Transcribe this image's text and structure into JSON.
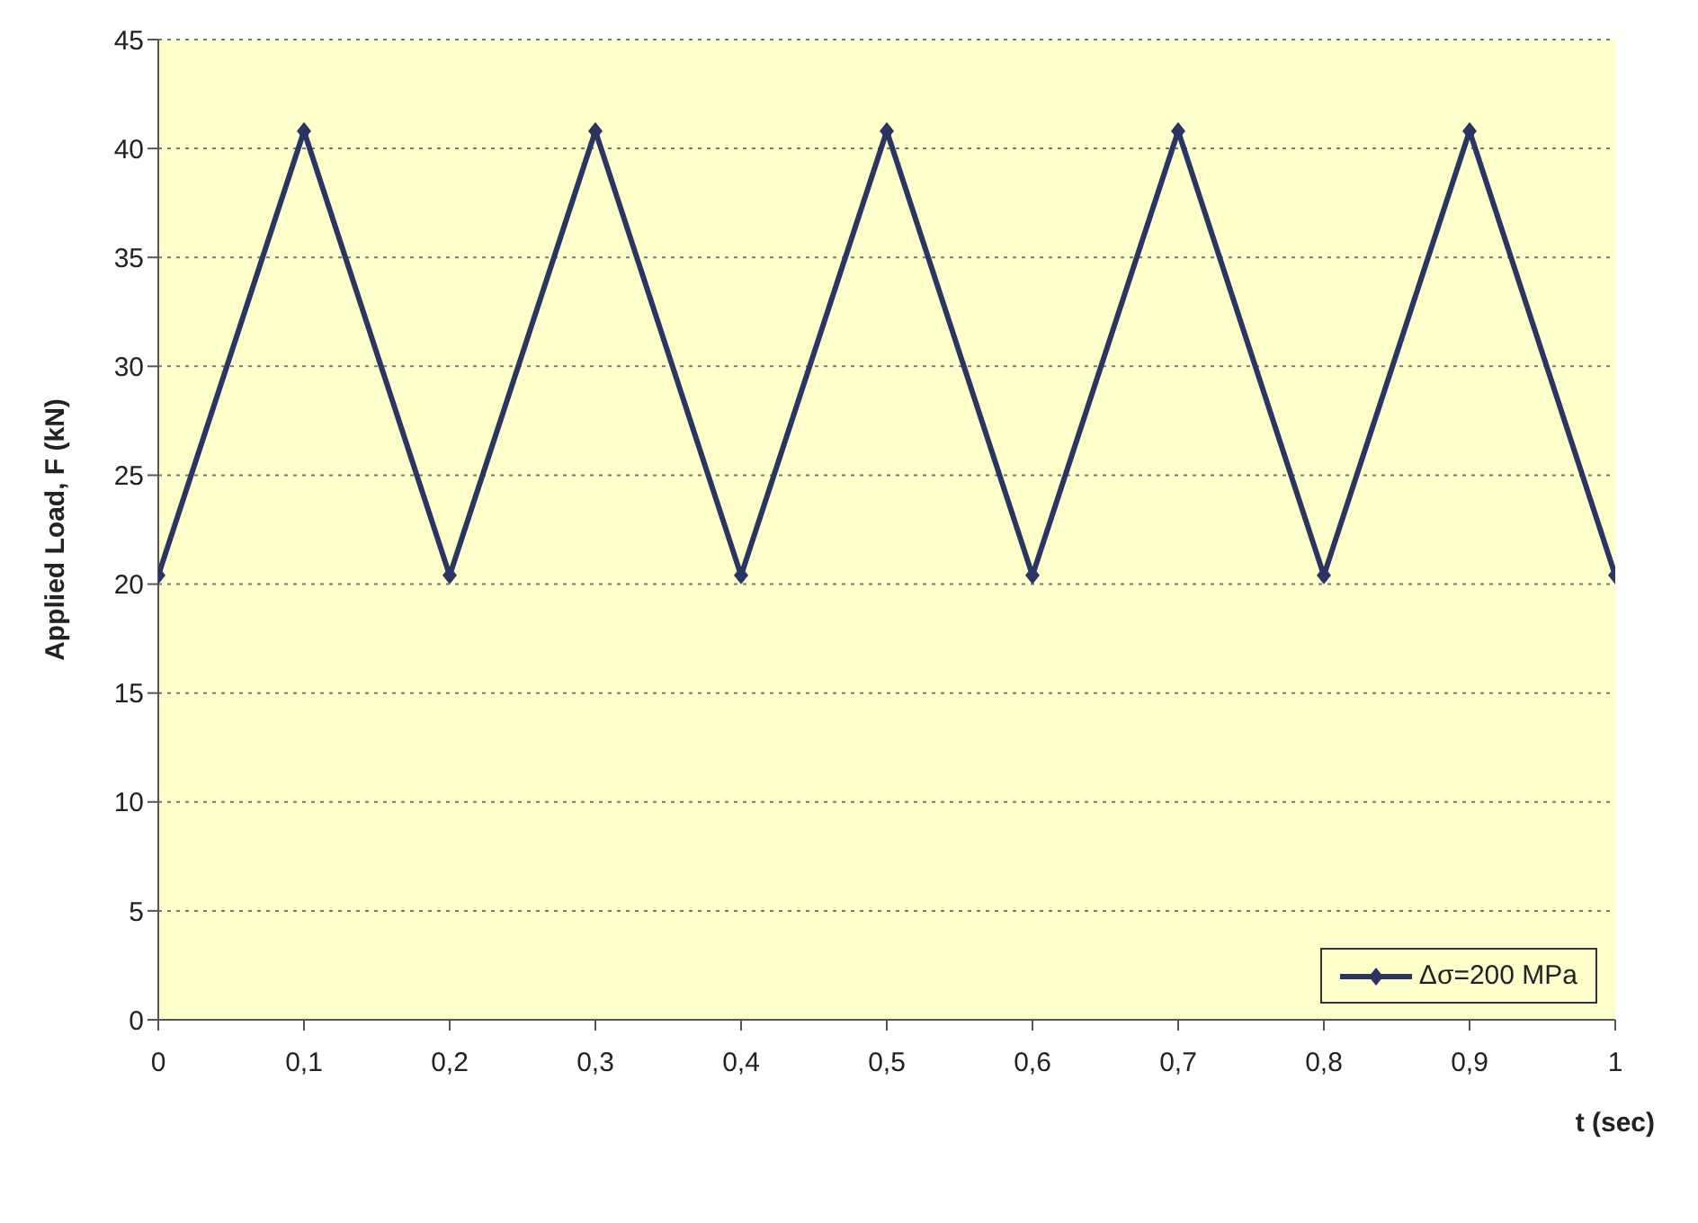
{
  "chart_data": {
    "type": "line",
    "xlabel": "t (sec)",
    "ylabel": "Applied Load, F (kN)",
    "x": [
      0,
      0.1,
      0.2,
      0.3,
      0.4,
      0.5,
      0.6,
      0.7,
      0.8,
      0.9,
      1
    ],
    "series": [
      {
        "name": "Δσ=200 MPa",
        "color": "#2b3562",
        "values": [
          20.4,
          40.8,
          20.4,
          40.8,
          20.4,
          40.8,
          20.4,
          40.8,
          20.4,
          40.8,
          20.4
        ]
      }
    ],
    "xlim": [
      0,
      1
    ],
    "xticks": [
      0,
      {
        "value": 0.1,
        "label": "0,1"
      },
      {
        "value": 0.2,
        "label": "0,2"
      },
      {
        "value": 0.3,
        "label": "0,3"
      },
      {
        "value": 0.4,
        "label": "0,4"
      },
      {
        "value": 0.5,
        "label": "0,5"
      },
      {
        "value": 0.6,
        "label": "0,6"
      },
      {
        "value": 0.7,
        "label": "0,7"
      },
      {
        "value": 0.8,
        "label": "0,8"
      },
      {
        "value": 0.9,
        "label": "0,9"
      },
      1
    ],
    "ylim": [
      0,
      45
    ],
    "yticks": [
      0,
      5,
      10,
      15,
      20,
      25,
      30,
      35,
      40,
      45
    ],
    "grid": "y",
    "legend": "bottom right",
    "marker": "diamond",
    "line_style": "solid"
  }
}
